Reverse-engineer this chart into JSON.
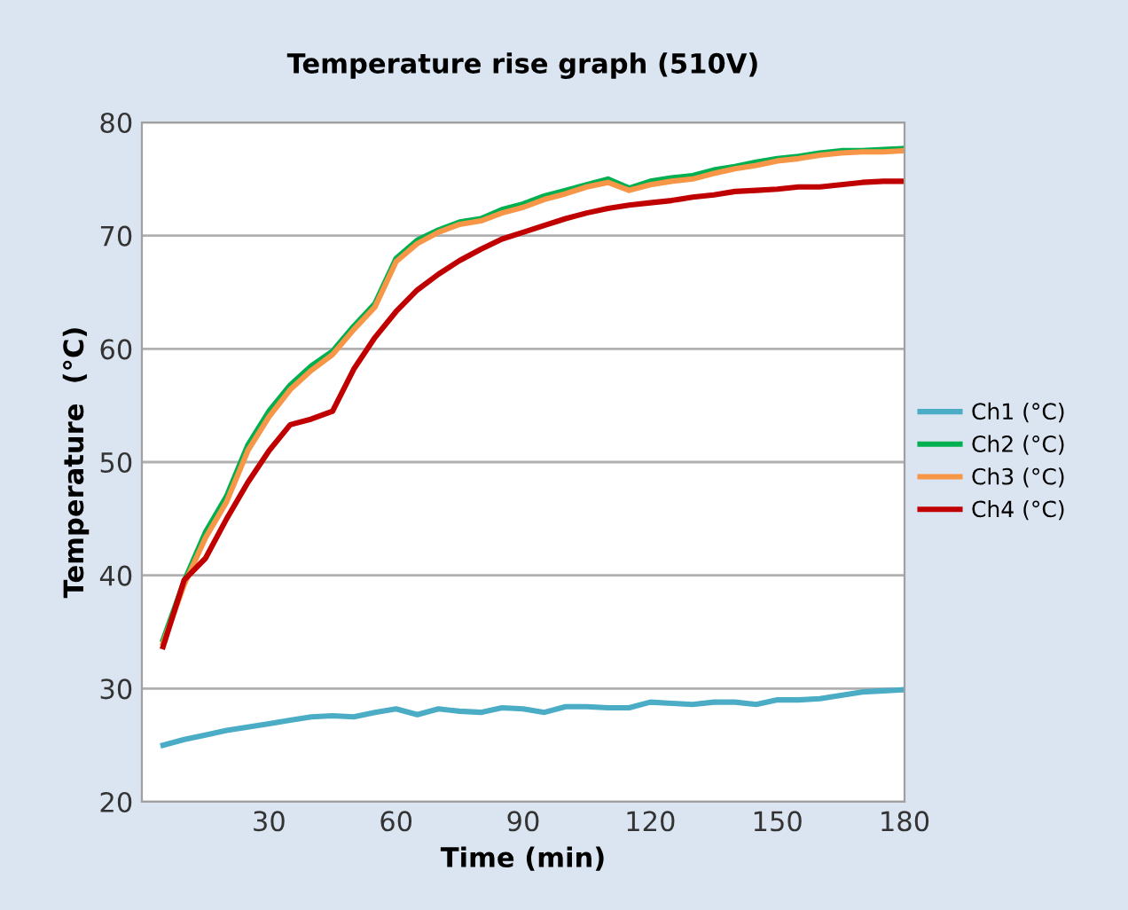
{
  "chart_data": {
    "type": "line",
    "title": "Temperature rise graph (510V)",
    "xlabel": "Time (min)",
    "ylabel": "Temperature  (°C)",
    "x": [
      5,
      10,
      15,
      20,
      25,
      30,
      35,
      40,
      45,
      50,
      55,
      60,
      65,
      70,
      75,
      80,
      85,
      90,
      95,
      100,
      105,
      110,
      115,
      120,
      125,
      130,
      135,
      140,
      145,
      150,
      155,
      160,
      165,
      170,
      175,
      180
    ],
    "series": [
      {
        "name": "Ch1 (°C)",
        "color": "#4bacc6",
        "values": [
          25.0,
          25.5,
          25.9,
          26.3,
          26.6,
          26.9,
          27.2,
          27.5,
          27.6,
          27.5,
          27.9,
          28.2,
          27.7,
          28.2,
          28.0,
          27.9,
          28.3,
          28.2,
          27.9,
          28.4,
          28.4,
          28.3,
          28.3,
          28.8,
          28.7,
          28.6,
          28.8,
          28.8,
          28.6,
          29.0,
          29.0,
          29.1,
          29.4,
          29.7,
          29.8,
          29.9
        ]
      },
      {
        "name": "Ch2 (°C)",
        "color": "#00b050",
        "values": [
          34.3,
          39.5,
          43.8,
          47.0,
          51.5,
          54.5,
          56.8,
          58.5,
          59.8,
          62.0,
          64.0,
          68.0,
          69.6,
          70.5,
          71.2,
          71.5,
          72.3,
          72.8,
          73.5,
          74.0,
          74.5,
          75.0,
          74.2,
          74.8,
          75.1,
          75.3,
          75.8,
          76.1,
          76.5,
          76.8,
          77.0,
          77.3,
          77.5,
          77.5,
          77.6,
          77.7
        ]
      },
      {
        "name": "Ch3 (°C)",
        "color": "#f79646",
        "values": [
          34.0,
          39.2,
          43.3,
          46.5,
          51.0,
          54.0,
          56.4,
          58.1,
          59.5,
          61.7,
          63.7,
          67.7,
          69.3,
          70.3,
          71.0,
          71.3,
          72.0,
          72.5,
          73.2,
          73.7,
          74.3,
          74.7,
          74.0,
          74.5,
          74.8,
          75.0,
          75.5,
          75.9,
          76.2,
          76.6,
          76.8,
          77.1,
          77.3,
          77.4,
          77.4,
          77.5
        ]
      },
      {
        "name": "Ch4 (°C)",
        "color": "#c00000",
        "values": [
          33.7,
          39.6,
          41.5,
          45.0,
          48.2,
          51.0,
          53.3,
          53.8,
          54.5,
          58.2,
          61.0,
          63.3,
          65.2,
          66.6,
          67.8,
          68.8,
          69.7,
          70.3,
          70.9,
          71.5,
          72.0,
          72.4,
          72.7,
          72.9,
          73.1,
          73.4,
          73.6,
          73.9,
          74.0,
          74.1,
          74.3,
          74.3,
          74.5,
          74.7,
          74.8,
          74.8
        ]
      }
    ],
    "xlim": [
      0,
      180
    ],
    "xticks": [
      30,
      60,
      90,
      120,
      150,
      180
    ],
    "ylim": [
      20,
      80
    ],
    "yticks": [
      20,
      30,
      40,
      50,
      60,
      70,
      80
    ],
    "grid": "y",
    "legend": "right",
    "marker": "none",
    "line_style": "solid"
  }
}
